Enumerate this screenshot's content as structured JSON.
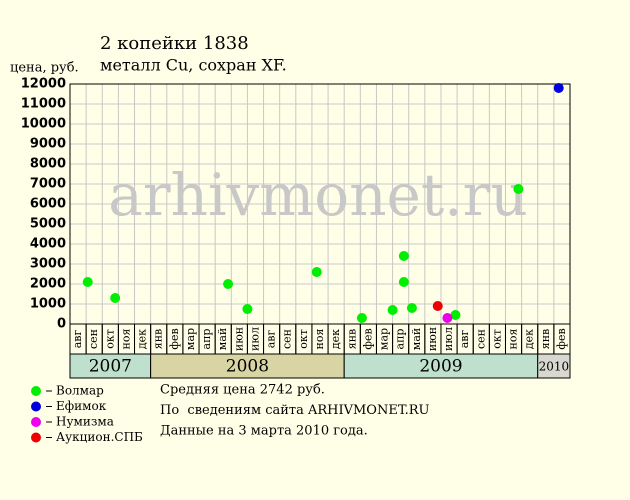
{
  "chart_data": {
    "type": "scatter",
    "title": "2 копейки 1838",
    "subtitle": "металл Cu, сохран XF.",
    "ylabel": "цена, руб.",
    "watermark": "arhivmonet.ru",
    "years": [
      {
        "label": "2007",
        "months": [
          "авг",
          "сен",
          "окт",
          "ноя",
          "дек"
        ],
        "color": "#bfe0cc"
      },
      {
        "label": "2008",
        "months": [
          "янв",
          "фев",
          "мар",
          "апр",
          "май",
          "июн",
          "июл",
          "авг",
          "сен",
          "окт",
          "ноя",
          "дек"
        ],
        "color": "#d8d4a4"
      },
      {
        "label": "2009",
        "months": [
          "янв",
          "фев",
          "мар",
          "апр",
          "май",
          "июн",
          "июл",
          "авг",
          "сен",
          "окт",
          "ноя",
          "дек"
        ],
        "color": "#bfe0cc"
      },
      {
        "label": "2010",
        "months": [
          "янв",
          "фев"
        ],
        "color": "#d8d8d0"
      }
    ],
    "xlim": [
      0,
      31
    ],
    "ylim": [
      0,
      12000
    ],
    "yticks": [
      0,
      1000,
      2000,
      3000,
      4000,
      5000,
      6000,
      7000,
      8000,
      9000,
      10000,
      11000,
      12000
    ],
    "grid": true,
    "series": [
      {
        "name": "Волмар",
        "color": "#00ee00",
        "x": [
          1.1,
          2.8,
          9.8,
          11.0,
          15.3,
          18.1,
          20.0,
          20.7,
          20.7,
          21.2,
          23.9,
          27.8
        ],
        "values": [
          2100,
          1300,
          2000,
          750,
          2600,
          300,
          700,
          3400,
          2100,
          800,
          450,
          6750
        ]
      },
      {
        "name": "Ефимок",
        "color": "#0000dd",
        "x": [
          30.3
        ],
        "values": [
          11800
        ]
      },
      {
        "name": "Нумизма",
        "color": "#ee00ee",
        "x": [
          23.4
        ],
        "values": [
          300
        ]
      },
      {
        "name": "Аукцион.СПБ",
        "color": "#ee0000",
        "x": [
          22.8
        ],
        "values": [
          900
        ]
      }
    ],
    "notes": [
      "Средняя цена 2742 руб.",
      "По  сведениям сайта ARHIVMONET.RU",
      "Данные на 3 марта 2010 года."
    ]
  }
}
